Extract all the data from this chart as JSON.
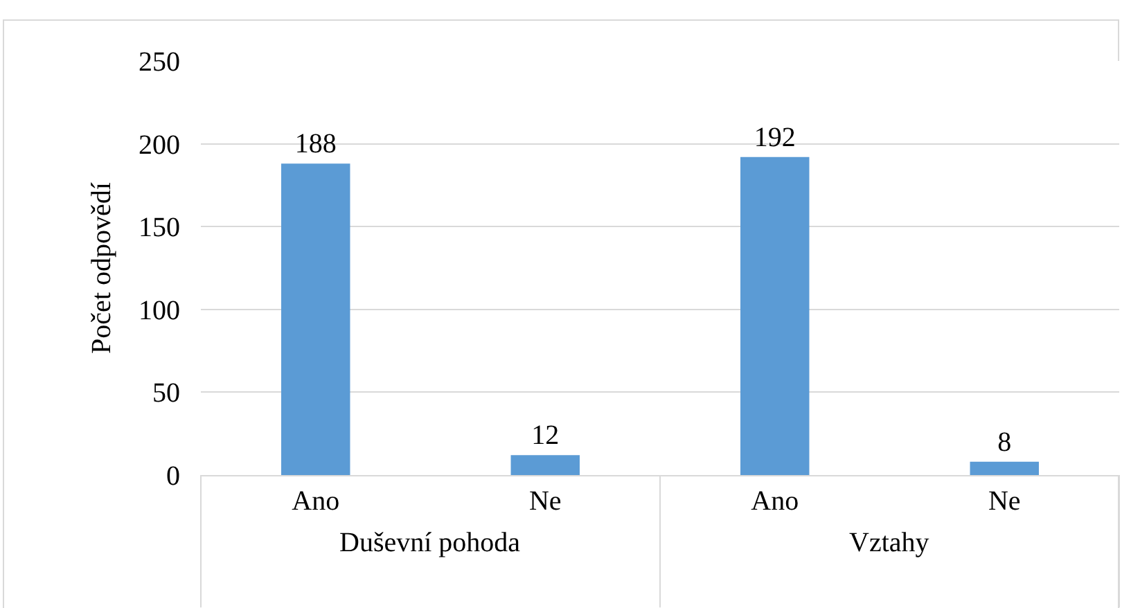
{
  "chart_data": {
    "type": "bar",
    "ylabel": "Počet odpovědí",
    "categories": [
      "Ano",
      "Ne",
      "Ano",
      "Ne"
    ],
    "values": [
      188,
      12,
      192,
      8
    ],
    "color": "#5b9bd5",
    "ylim": [
      0,
      250
    ],
    "yticks": [
      0,
      50,
      100,
      150,
      200,
      250
    ],
    "grid": "y",
    "data_labels": true,
    "annotations": [
      "Duševní pohoda",
      "Vztahy"
    ]
  }
}
